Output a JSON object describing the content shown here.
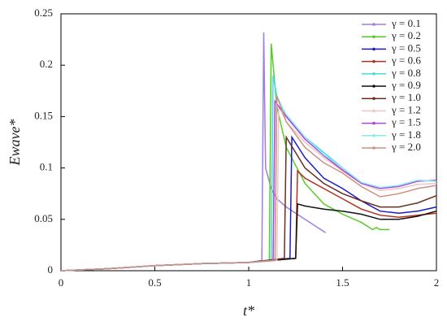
{
  "chart_data": {
    "type": "line",
    "x_label": "t*",
    "y_label": "Ewave*",
    "xlim": [
      0,
      2
    ],
    "xticks": [
      0,
      0.5,
      1,
      1.5,
      2
    ],
    "ylim": [
      0,
      0.25
    ],
    "yticks": [
      0,
      0.05,
      0.1,
      0.15,
      0.2,
      0.25
    ],
    "grid": false,
    "legend": "upper-right",
    "series": [
      {
        "name": "γ = 0.1",
        "color": "#a07ee0",
        "x": [
          0,
          0.25,
          0.5,
          0.75,
          1.0,
          1.07,
          1.08,
          1.09,
          1.12,
          1.15,
          1.2,
          1.3,
          1.41
        ],
        "values": [
          0,
          0.002,
          0.005,
          0.007,
          0.008,
          0.01,
          0.232,
          0.1,
          0.08,
          0.07,
          0.062,
          0.05,
          0.037
        ]
      },
      {
        "name": "γ = 0.2",
        "color": "#55cc22",
        "x": [
          0,
          0.25,
          0.5,
          0.75,
          1.0,
          1.11,
          1.12,
          1.15,
          1.2,
          1.3,
          1.4,
          1.5,
          1.6,
          1.66,
          1.68,
          1.7,
          1.75
        ],
        "values": [
          0,
          0.002,
          0.005,
          0.007,
          0.008,
          0.01,
          0.221,
          0.16,
          0.12,
          0.085,
          0.065,
          0.055,
          0.047,
          0.04,
          0.042,
          0.04,
          0.04
        ]
      },
      {
        "name": "γ = 0.5",
        "color": "#1a1acc",
        "x": [
          0,
          0.25,
          0.5,
          0.75,
          1.0,
          1.22,
          1.23,
          1.3,
          1.4,
          1.5,
          1.6,
          1.7,
          1.8,
          1.9,
          2.0
        ],
        "values": [
          0,
          0.002,
          0.005,
          0.007,
          0.008,
          0.012,
          0.13,
          0.11,
          0.09,
          0.08,
          0.068,
          0.058,
          0.056,
          0.058,
          0.062
        ]
      },
      {
        "name": "γ = 0.6",
        "color": "#b03020",
        "x": [
          0,
          0.25,
          0.5,
          0.75,
          1.0,
          1.25,
          1.26,
          1.3,
          1.4,
          1.5,
          1.6,
          1.7,
          1.8,
          1.9,
          2.0
        ],
        "values": [
          0,
          0.002,
          0.005,
          0.007,
          0.008,
          0.012,
          0.097,
          0.09,
          0.08,
          0.07,
          0.06,
          0.054,
          0.052,
          0.054,
          0.056
        ]
      },
      {
        "name": "γ = 0.8",
        "color": "#44dddd",
        "x": [
          0,
          0.25,
          0.5,
          0.75,
          1.0,
          1.12,
          1.13,
          1.15,
          1.2,
          1.3,
          1.4,
          1.5,
          1.6,
          1.7,
          1.8,
          1.9,
          2.0
        ],
        "values": [
          0,
          0.002,
          0.005,
          0.007,
          0.008,
          0.01,
          0.19,
          0.17,
          0.15,
          0.13,
          0.115,
          0.1,
          0.085,
          0.08,
          0.083,
          0.088,
          0.087
        ]
      },
      {
        "name": "γ = 0.9",
        "color": "#111111",
        "x": [
          0,
          0.25,
          0.5,
          0.75,
          1.0,
          1.25,
          1.26,
          1.3,
          1.4,
          1.5,
          1.6,
          1.7,
          1.8,
          1.9,
          2.0
        ],
        "values": [
          0,
          0.002,
          0.005,
          0.007,
          0.008,
          0.012,
          0.065,
          0.063,
          0.06,
          0.058,
          0.055,
          0.05,
          0.05,
          0.053,
          0.058
        ]
      },
      {
        "name": "γ = 1.0",
        "color": "#6b2e1e",
        "x": [
          0,
          0.25,
          0.5,
          0.75,
          1.0,
          1.19,
          1.2,
          1.3,
          1.4,
          1.5,
          1.6,
          1.7,
          1.8,
          1.9,
          2.0
        ],
        "values": [
          0,
          0.002,
          0.005,
          0.007,
          0.008,
          0.012,
          0.13,
          0.1,
          0.085,
          0.075,
          0.068,
          0.062,
          0.062,
          0.066,
          0.073
        ]
      },
      {
        "name": "γ = 1.2",
        "color": "#f0c4c4",
        "x": [
          0,
          0.25,
          0.5,
          0.75,
          1.0,
          1.15,
          1.16,
          1.2,
          1.3,
          1.4,
          1.5,
          1.6,
          1.7,
          1.8,
          1.9,
          2.0
        ],
        "values": [
          0,
          0.002,
          0.005,
          0.007,
          0.008,
          0.01,
          0.16,
          0.145,
          0.125,
          0.11,
          0.097,
          0.085,
          0.078,
          0.08,
          0.084,
          0.085
        ]
      },
      {
        "name": "γ = 1.5",
        "color": "#aa44dd",
        "x": [
          0,
          0.25,
          0.5,
          0.75,
          1.0,
          1.13,
          1.14,
          1.2,
          1.3,
          1.4,
          1.5,
          1.6,
          1.7,
          1.8,
          1.9,
          2.0
        ],
        "values": [
          0,
          0.002,
          0.005,
          0.007,
          0.008,
          0.01,
          0.165,
          0.15,
          0.128,
          0.112,
          0.098,
          0.085,
          0.08,
          0.082,
          0.087,
          0.088
        ]
      },
      {
        "name": "γ = 1.8",
        "color": "#88e8f0",
        "x": [
          0,
          0.25,
          0.5,
          0.75,
          1.0,
          1.14,
          1.15,
          1.2,
          1.3,
          1.4,
          1.5,
          1.6,
          1.7,
          1.8,
          1.9,
          2.0
        ],
        "values": [
          0,
          0.002,
          0.005,
          0.007,
          0.008,
          0.01,
          0.168,
          0.152,
          0.13,
          0.113,
          0.1,
          0.086,
          0.081,
          0.083,
          0.088,
          0.087
        ]
      },
      {
        "name": "γ = 2.0",
        "color": "#cc9080",
        "x": [
          0,
          0.25,
          0.5,
          0.75,
          1.0,
          1.14,
          1.15,
          1.2,
          1.3,
          1.4,
          1.5,
          1.6,
          1.7,
          1.8,
          1.9,
          2.0
        ],
        "values": [
          0,
          0.002,
          0.005,
          0.007,
          0.008,
          0.01,
          0.17,
          0.145,
          0.12,
          0.105,
          0.095,
          0.082,
          0.072,
          0.075,
          0.08,
          0.083
        ]
      }
    ]
  }
}
